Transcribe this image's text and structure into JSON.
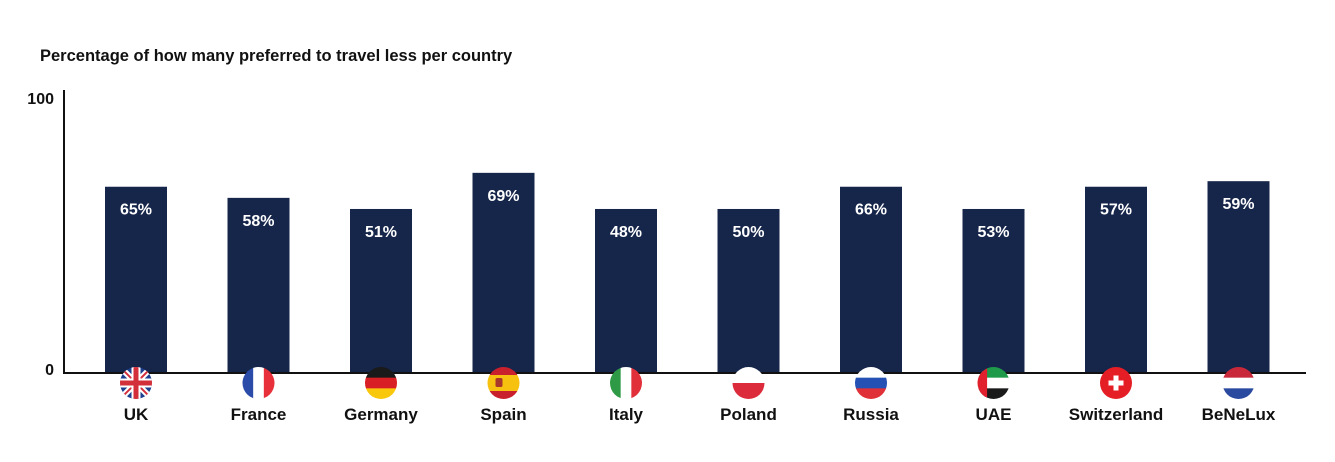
{
  "chart_data": {
    "type": "bar",
    "title": "Percentage of how many preferred to travel less per country",
    "xlabel": "",
    "ylabel": "",
    "ylim": [
      0,
      100
    ],
    "yticks": [
      "100",
      "0"
    ],
    "categories": [
      "UK",
      "France",
      "Germany",
      "Spain",
      "Italy",
      "Poland",
      "Russia",
      "UAE",
      "Switzerland",
      "BeNeLux"
    ],
    "flags": [
      "uk-flag-icon",
      "france-flag-icon",
      "germany-flag-icon",
      "spain-flag-icon",
      "italy-flag-icon",
      "poland-flag-icon",
      "russia-flag-icon",
      "uae-flag-icon",
      "switzerland-flag-icon",
      "benelux-flag-icon"
    ],
    "series": [
      {
        "values": [
          65,
          58,
          51,
          69,
          48,
          50,
          66,
          53,
          57,
          59
        ],
        "labels": [
          "65%",
          "58%",
          "51%",
          "69%",
          "48%",
          "50%",
          "66%",
          "53%",
          "57%",
          "59%"
        ],
        "bar_heights": [
          67,
          63,
          59,
          72,
          59,
          59,
          67,
          59,
          67,
          69
        ]
      }
    ],
    "bar_color": "#16254a",
    "grid": false,
    "legend": "none"
  }
}
